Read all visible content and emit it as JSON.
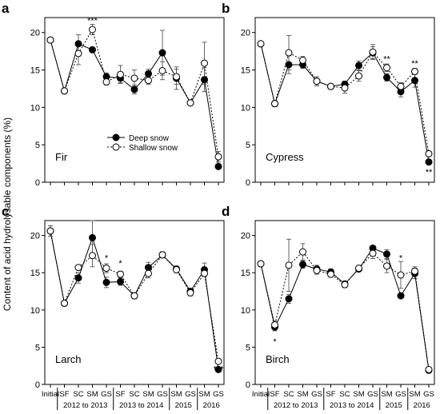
{
  "figure": {
    "ylabel": "Content of acid hydrolysable components (%)",
    "categories": [
      "Initial",
      "SF",
      "SC",
      "SM",
      "GS",
      "SF",
      "SC",
      "SM",
      "GS",
      "SM",
      "GS",
      "SM",
      "GS"
    ],
    "year_groups": [
      {
        "label": "2012 to 2013",
        "from": 1,
        "to": 4
      },
      {
        "label": "2013 to 2014",
        "from": 5,
        "to": 8
      },
      {
        "label": "2015",
        "from": 9,
        "to": 10
      },
      {
        "label": "2016",
        "from": 11,
        "to": 12
      }
    ],
    "legend": {
      "deep": "Deep snow",
      "shallow": "Shallow snow"
    }
  },
  "chart_data": [
    {
      "type": "line",
      "panel_letter": "a",
      "species": "Fir",
      "ylim": [
        0,
        22
      ],
      "yticks": [
        0,
        5,
        10,
        15,
        20
      ],
      "categories": [
        "Initial",
        "SF",
        "SC",
        "SM",
        "GS",
        "SF",
        "SC",
        "SM",
        "GS",
        "SM",
        "GS",
        "SM",
        "GS"
      ],
      "series": [
        {
          "name": "Deep snow",
          "values": [
            19.0,
            12.2,
            18.5,
            17.7,
            14.1,
            13.9,
            12.4,
            14.5,
            17.3,
            13.9,
            10.6,
            13.7,
            2.1
          ],
          "errors": [
            0.3,
            0.3,
            1.2,
            0.3,
            0.5,
            0.6,
            0.6,
            0.6,
            3.0,
            1.5,
            0.3,
            1.6,
            0.3
          ]
        },
        {
          "name": "Shallow snow",
          "values": [
            19.0,
            12.2,
            17.2,
            20.4,
            13.4,
            14.4,
            13.9,
            13.6,
            14.9,
            14.1,
            10.6,
            15.9,
            3.4
          ],
          "errors": [
            0.3,
            0.3,
            1.5,
            0.7,
            0.4,
            1.2,
            1.1,
            0.5,
            1.2,
            1.0,
            0.3,
            2.8,
            0.7
          ]
        }
      ],
      "annotations": [
        {
          "text": "***",
          "index": 3,
          "value": 21.6
        }
      ]
    },
    {
      "type": "line",
      "panel_letter": "b",
      "species": "Cypress",
      "ylim": [
        0,
        22
      ],
      "yticks": [
        0,
        5,
        10,
        15,
        20
      ],
      "categories": [
        "Initial",
        "SF",
        "SC",
        "SM",
        "GS",
        "SF",
        "SC",
        "SM",
        "GS",
        "SM",
        "GS",
        "SM",
        "GS"
      ],
      "series": [
        {
          "name": "Deep snow",
          "values": [
            18.5,
            10.5,
            15.7,
            15.7,
            13.5,
            12.8,
            13.1,
            15.6,
            17.3,
            14.0,
            12.1,
            13.6,
            2.7
          ],
          "errors": [
            0.2,
            0.4,
            1.2,
            0.5,
            0.6,
            0.2,
            0.4,
            0.6,
            0.8,
            0.5,
            0.7,
            0.9,
            0.3
          ]
        },
        {
          "name": "Shallow snow",
          "values": [
            18.5,
            10.5,
            17.3,
            16.3,
            13.5,
            12.8,
            12.6,
            14.2,
            17.4,
            15.3,
            12.8,
            14.8,
            3.8
          ],
          "errors": [
            0.2,
            0.4,
            2.3,
            0.5,
            0.6,
            0.2,
            0.7,
            0.7,
            1.0,
            0.5,
            0.5,
            0.4,
            0.3
          ]
        }
      ],
      "annotations": [
        {
          "text": "**",
          "index": 9,
          "value": 16.5
        },
        {
          "text": "**",
          "index": 11,
          "value": 15.9
        },
        {
          "text": "**",
          "index": 12,
          "value": 1.4
        }
      ]
    },
    {
      "type": "line",
      "panel_letter": "c",
      "species": "Larch",
      "ylim": [
        0,
        22
      ],
      "yticks": [
        0,
        5,
        10,
        15,
        20
      ],
      "categories": [
        "Initial",
        "SF",
        "SC",
        "SM",
        "GS",
        "SF",
        "SC",
        "SM",
        "GS",
        "SM",
        "GS",
        "SM",
        "GS"
      ],
      "series": [
        {
          "name": "Deep snow",
          "values": [
            20.6,
            10.9,
            14.3,
            19.7,
            13.7,
            13.8,
            11.9,
            15.7,
            17.4,
            15.5,
            12.5,
            15.4,
            2.0
          ],
          "errors": [
            0.7,
            0.3,
            0.7,
            2.3,
            0.7,
            0.5,
            0.4,
            0.7,
            0.4,
            0.4,
            0.4,
            0.9,
            0.3
          ]
        },
        {
          "name": "Shallow snow",
          "values": [
            20.6,
            10.9,
            15.7,
            17.3,
            15.6,
            14.8,
            11.9,
            14.9,
            17.4,
            15.4,
            12.3,
            14.9,
            3.1
          ],
          "errors": [
            0.7,
            0.3,
            0.3,
            1.5,
            0.6,
            0.4,
            0.4,
            0.6,
            0.4,
            0.4,
            0.4,
            0.4,
            0.3
          ]
        }
      ],
      "annotations": [
        {
          "text": "*",
          "index": 4,
          "value": 17.0
        },
        {
          "text": "*",
          "index": 5,
          "value": 16.3
        },
        {
          "text": "***",
          "index": 12,
          "value": 2.1
        }
      ]
    },
    {
      "type": "line",
      "panel_letter": "d",
      "species": "Birch",
      "ylim": [
        0,
        22
      ],
      "yticks": [
        0,
        5,
        10,
        15,
        20
      ],
      "categories": [
        "Initial",
        "SF",
        "SC",
        "SM",
        "GS",
        "SF",
        "SC",
        "SM",
        "GS",
        "SM",
        "GS",
        "SM",
        "GS"
      ],
      "series": [
        {
          "name": "Deep snow",
          "values": [
            16.2,
            7.7,
            11.5,
            16.1,
            15.5,
            15.1,
            13.5,
            15.5,
            18.3,
            17.5,
            11.9,
            14.9,
            1.9
          ],
          "errors": [
            0.2,
            0.5,
            0.6,
            0.5,
            0.5,
            0.4,
            0.3,
            0.3,
            0.2,
            0.6,
            0.3,
            0.7,
            0.3
          ]
        },
        {
          "name": "Shallow snow",
          "values": [
            16.2,
            8.0,
            16.0,
            17.8,
            15.3,
            14.8,
            13.4,
            15.6,
            17.6,
            15.9,
            14.7,
            15.2,
            2.0
          ],
          "errors": [
            0.2,
            0.5,
            3.5,
            1.1,
            0.5,
            0.4,
            0.4,
            0.4,
            0.7,
            0.9,
            1.8,
            0.6,
            0.3
          ]
        }
      ],
      "annotations": [
        {
          "text": "*",
          "index": 1,
          "value": 5.8
        },
        {
          "text": "*",
          "index": 10,
          "value": 17.0
        }
      ]
    }
  ]
}
